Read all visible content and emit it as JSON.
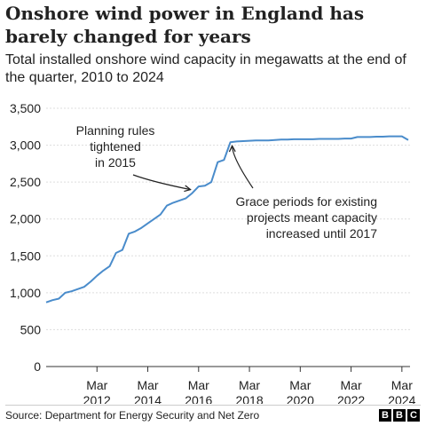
{
  "title": "Onshore wind power in England has barely changed for years",
  "subtitle": "Total installed onshore wind capacity in megawatts at the end of the quarter, 2010 to 2024",
  "source": "Source: Department for Energy Security and Net Zero",
  "logo": [
    "B",
    "B",
    "C"
  ],
  "chart_data": {
    "type": "line",
    "title": "Onshore wind power in England has barely changed for years",
    "subtitle": "Total installed onshore wind capacity in megawatts at the end of the quarter, 2010 to 2024",
    "xlabel": "",
    "ylabel": "",
    "x_tick_labels": [
      "Mar 2012",
      "Mar 2014",
      "Mar 2016",
      "Mar 2018",
      "Mar 2020",
      "Mar 2022",
      "Mar 2024"
    ],
    "y_ticks": [
      0,
      500,
      1000,
      1500,
      2000,
      2500,
      3000,
      3500
    ],
    "y_tick_labels": [
      "0",
      "500",
      "1,000",
      "1,500",
      "2,000",
      "2,500",
      "3,000",
      "3,500"
    ],
    "ylim": [
      0,
      3500
    ],
    "xlim": [
      "Mar 2010",
      "Jun 2024"
    ],
    "grid": "horizontal",
    "line_color": "#4a8ccb",
    "series": [
      {
        "name": "",
        "x": [
          "Mar 2010",
          "Jun 2010",
          "Sep 2010",
          "Dec 2010",
          "Mar 2011",
          "Jun 2011",
          "Sep 2011",
          "Dec 2011",
          "Mar 2012",
          "Jun 2012",
          "Sep 2012",
          "Dec 2012",
          "Mar 2013",
          "Jun 2013",
          "Sep 2013",
          "Dec 2013",
          "Mar 2014",
          "Jun 2014",
          "Sep 2014",
          "Dec 2014",
          "Mar 2015",
          "Jun 2015",
          "Sep 2015",
          "Dec 2015",
          "Mar 2016",
          "Jun 2016",
          "Sep 2016",
          "Dec 2016",
          "Mar 2017",
          "Jun 2017",
          "Sep 2017",
          "Dec 2017",
          "Mar 2018",
          "Jun 2018",
          "Sep 2018",
          "Dec 2018",
          "Mar 2019",
          "Jun 2019",
          "Sep 2019",
          "Dec 2019",
          "Mar 2020",
          "Jun 2020",
          "Sep 2020",
          "Dec 2020",
          "Mar 2021",
          "Jun 2021",
          "Sep 2021",
          "Dec 2021",
          "Mar 2022",
          "Jun 2022",
          "Sep 2022",
          "Dec 2022",
          "Mar 2023",
          "Jun 2023",
          "Sep 2023",
          "Dec 2023",
          "Mar 2024",
          "Jun 2024"
        ],
        "values": [
          870,
          900,
          920,
          1000,
          1020,
          1050,
          1080,
          1150,
          1230,
          1300,
          1360,
          1540,
          1580,
          1800,
          1830,
          1880,
          1940,
          2000,
          2060,
          2180,
          2220,
          2250,
          2280,
          2350,
          2440,
          2450,
          2500,
          2770,
          2800,
          3040,
          3050,
          3055,
          3060,
          3065,
          3065,
          3065,
          3070,
          3075,
          3075,
          3080,
          3080,
          3080,
          3080,
          3085,
          3085,
          3085,
          3085,
          3090,
          3090,
          3110,
          3110,
          3110,
          3115,
          3115,
          3120,
          3120,
          3120,
          3070
        ]
      }
    ],
    "annotations": [
      {
        "lines": [
          "Planning rules",
          "tightened",
          "in 2015"
        ],
        "target": "Dec 2015"
      },
      {
        "lines": [
          "Grace periods for existing",
          "projects meant capacity",
          "increased until 2017"
        ],
        "target": "Jun 2017"
      }
    ]
  }
}
